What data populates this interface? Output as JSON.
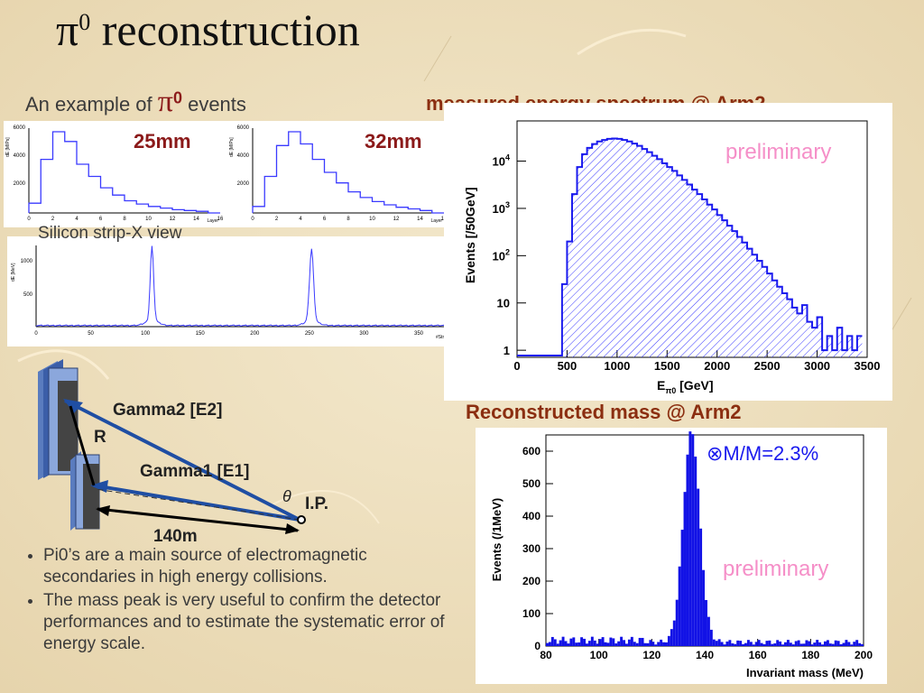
{
  "title": {
    "symbol": "π",
    "sup": "0",
    "text": "reconstruction"
  },
  "example": {
    "prefix": "An example of",
    "symbol": "π",
    "sup": "0",
    "suffix": "events"
  },
  "layer_plots": {
    "left": {
      "label": "25mm",
      "ylabel": "dE [MIPs]",
      "xlabel": "Layer",
      "yticks": [
        "2000",
        "4000",
        "6000"
      ],
      "xticks": [
        "0",
        "2",
        "4",
        "6",
        "8",
        "10",
        "12",
        "14",
        "16"
      ],
      "values": [
        0.12,
        0.66,
        1.0,
        0.88,
        0.6,
        0.45,
        0.31,
        0.22,
        0.15,
        0.11,
        0.08,
        0.06,
        0.04,
        0.03,
        0.02,
        0.0
      ]
    },
    "right": {
      "label": "32mm",
      "ylabel": "dE [MIPs]",
      "xlabel": "Layer",
      "yticks": [
        "2000",
        "4000",
        "6000"
      ],
      "xticks": [
        "0",
        "2",
        "4",
        "6",
        "8",
        "10",
        "12",
        "14",
        "16"
      ],
      "values": [
        0.08,
        0.45,
        0.83,
        1.0,
        0.85,
        0.66,
        0.5,
        0.37,
        0.26,
        0.19,
        0.14,
        0.1,
        0.07,
        0.05,
        0.03,
        0.0
      ]
    }
  },
  "silicon": {
    "caption": "Silicon strip-X view",
    "ylabel": "dE [MeV]",
    "xlabel": "#Strip",
    "yticks": [
      "500",
      "1000"
    ],
    "xticks": [
      "0",
      "50",
      "100",
      "150",
      "200",
      "250",
      "300",
      "350"
    ]
  },
  "diagram": {
    "gamma2": "Gamma2 [E2]",
    "gamma1": "Gamma1 [E1]",
    "r": "R",
    "distance": "140m",
    "theta": "θ",
    "ip": "I.P."
  },
  "bullets": [
    "Pi0’s are a main source of electromagnetic secondaries in high energy collisions.",
    "The mass peak is very useful to confirm the detector performances and to estimate the systematic error of energy scale."
  ],
  "chart_data": [
    {
      "type": "area",
      "title": "measured energy spectrum @ Arm2",
      "xlabel": "E_π0 [GeV]",
      "ylabel": "Events [/50GeV]",
      "xlim": [
        0,
        3500
      ],
      "yscale": "log",
      "annotation": "preliminary",
      "xticks": [
        "0",
        "500",
        "1000",
        "1500",
        "2000",
        "2500",
        "3000",
        "3500"
      ],
      "yticks": [
        {
          "label": "1",
          "exp": ""
        },
        {
          "label": "10",
          "exp": ""
        },
        {
          "label": "10",
          "exp": "2"
        },
        {
          "label": "10",
          "exp": "3"
        },
        {
          "label": "10",
          "exp": "4"
        }
      ],
      "x": [
        475,
        525,
        575,
        625,
        675,
        725,
        775,
        825,
        875,
        925,
        975,
        1025,
        1075,
        1125,
        1175,
        1225,
        1275,
        1325,
        1375,
        1425,
        1475,
        1525,
        1575,
        1625,
        1675,
        1725,
        1775,
        1825,
        1875,
        1925,
        1975,
        2025,
        2075,
        2125,
        2175,
        2225,
        2275,
        2325,
        2375,
        2425,
        2475,
        2525,
        2575,
        2625,
        2675,
        2725,
        2775,
        2825,
        2875,
        2925,
        2975,
        3025,
        3075,
        3125,
        3175,
        3225,
        3275,
        3325,
        3375,
        3425
      ],
      "y": [
        25,
        200,
        2000,
        7500,
        14000,
        19000,
        23000,
        26000,
        28000,
        29500,
        30000,
        29500,
        28000,
        26000,
        23500,
        21000,
        18000,
        15500,
        13000,
        11000,
        9000,
        7500,
        6200,
        5000,
        4000,
        3200,
        2500,
        2000,
        1550,
        1200,
        950,
        720,
        560,
        430,
        330,
        250,
        190,
        140,
        105,
        78,
        58,
        42,
        30,
        22,
        16,
        12,
        8,
        6,
        9,
        4,
        3,
        5,
        1,
        2,
        1,
        3,
        1,
        2,
        1,
        2
      ]
    },
    {
      "type": "bar",
      "title": "Reconstructed mass @ Arm2",
      "xlabel": "Invariant mass (MeV)",
      "ylabel": "Events (/1MeV)",
      "xlim": [
        80,
        200
      ],
      "ylim": [
        0,
        650
      ],
      "annotation": "⊗M/M=2.3%",
      "annotation2": "preliminary",
      "xticks": [
        "80",
        "100",
        "120",
        "140",
        "160",
        "180",
        "200"
      ],
      "yticks": [
        "0",
        "100",
        "200",
        "300",
        "400",
        "500",
        "600"
      ],
      "peak_mev": 135,
      "peak_value": 650,
      "width_mev": 3.1,
      "baseline": 15
    }
  ]
}
